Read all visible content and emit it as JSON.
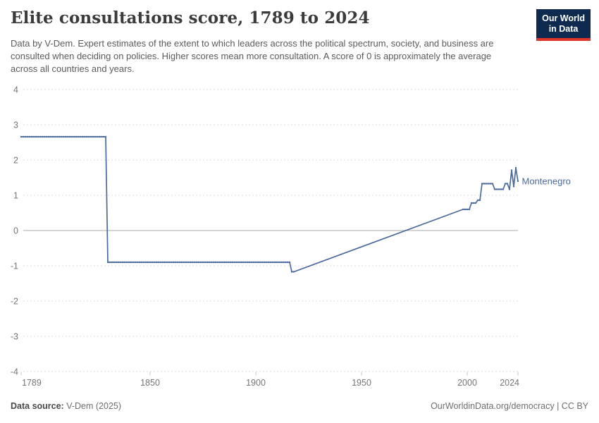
{
  "header": {
    "title": "Elite consultations score, 1789 to 2024",
    "subtitle": "Data by V-Dem. Expert estimates of the extent to which leaders across the political spectrum, society, and business are consulted when deciding on policies. Higher scores mean more consultation. A score of 0 is approximately the average across all countries and years.",
    "logo_line1": "Our World",
    "logo_line2": "in Data"
  },
  "colors": {
    "series_blue": "#4c6a9c",
    "logo_bg": "#0e2a4e",
    "logo_underline": "#e0342b",
    "gridline": "#dddddd",
    "zero_line": "#a8a8a8",
    "axis_text": "#757575"
  },
  "chart_data": {
    "type": "line",
    "title": "Elite consultations score, 1789 to 2024",
    "xlabel": "",
    "ylabel": "",
    "xlim": [
      1789,
      2024
    ],
    "ylim": [
      -4,
      4
    ],
    "x_tick_labels": [
      "1789",
      "1850",
      "1900",
      "1950",
      "2000",
      "2024"
    ],
    "x_tick_years": [
      1789,
      1850,
      1900,
      1950,
      2000,
      2024
    ],
    "y_ticks": [
      4,
      3,
      2,
      1,
      0,
      -1,
      -2,
      -3,
      -4
    ],
    "grid": "horizontal dashed, solid line at 0",
    "legend_position": "end-of-line label",
    "series": [
      {
        "name": "Montenegro",
        "color": "#4c6a9c",
        "markers": "small dots on actual data years",
        "gap_years_interpolated": [
          1919,
          1997
        ],
        "runs": [
          {
            "from": 1789,
            "to": 1829,
            "value": 2.66
          },
          {
            "from": 1830,
            "to": 1916,
            "value": -0.9
          },
          {
            "from": 1917,
            "to": 1918,
            "value": -1.17
          },
          {
            "from": 1998,
            "to": 2001,
            "value": 0.6
          },
          {
            "from": 2002,
            "to": 2004,
            "value": 0.78
          },
          {
            "from": 2005,
            "to": 2006,
            "value": 0.86
          },
          {
            "from": 2007,
            "to": 2012,
            "value": 1.33
          },
          {
            "from": 2013,
            "to": 2017,
            "value": 1.17
          },
          {
            "from": 2018,
            "to": 2019,
            "value": 1.33
          },
          {
            "from": 2020,
            "to": 2020,
            "value": 1.17
          },
          {
            "from": 2021,
            "to": 2021,
            "value": 1.71
          },
          {
            "from": 2022,
            "to": 2022,
            "value": 1.25
          },
          {
            "from": 2023,
            "to": 2023,
            "value": 1.78
          },
          {
            "from": 2024,
            "to": 2024,
            "value": 1.4
          }
        ]
      }
    ]
  },
  "footer": {
    "source_label": "Data source:",
    "source_value": " V-Dem (2025)",
    "right_text": "OurWorldinData.org/democracy | CC BY"
  }
}
